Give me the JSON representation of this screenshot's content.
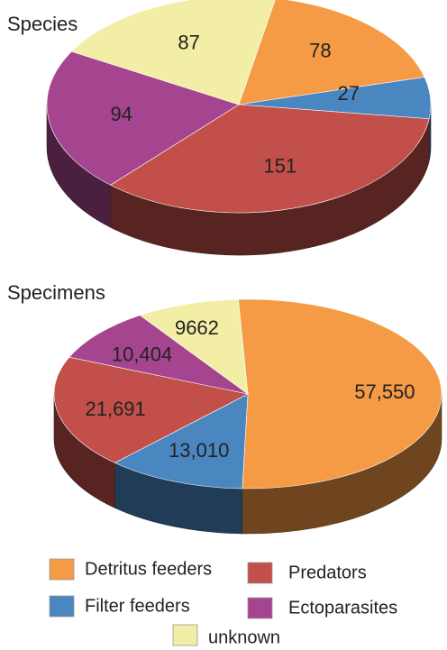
{
  "chart_data": [
    {
      "type": "pie",
      "title": "Species",
      "categories": [
        "Detritus feeders",
        "Filter feeders",
        "Predators",
        "Ectoparasites",
        "unknown"
      ],
      "values": [
        78,
        27,
        151,
        94,
        87
      ],
      "labels": [
        "78",
        "27",
        "151",
        "94",
        "87"
      ]
    },
    {
      "type": "pie",
      "title": "Specimens",
      "categories": [
        "Detritus feeders",
        "Filter feeders",
        "Predators",
        "Ectoparasites",
        "unknown"
      ],
      "values": [
        57550,
        13010,
        21691,
        10404,
        9662
      ],
      "labels": [
        "57,550",
        "13,010",
        "21,691",
        "10,404",
        "9662"
      ]
    }
  ],
  "legend": {
    "items": [
      {
        "label": "Detritus feeders",
        "color": "#f59a45"
      },
      {
        "label": "Predators",
        "color": "#c24f4a"
      },
      {
        "label": "Filter feeders",
        "color": "#4a86c0"
      },
      {
        "label": "Ectoparasites",
        "color": "#a5448f"
      },
      {
        "label": "unknown",
        "color": "#f3eea5"
      }
    ]
  },
  "colors": {
    "Detritus feeders": "#f59a45",
    "Filter feeders": "#4a86c0",
    "Predators": "#c24f4a",
    "Ectoparasites": "#a5448f",
    "unknown": "#f3eea5"
  }
}
